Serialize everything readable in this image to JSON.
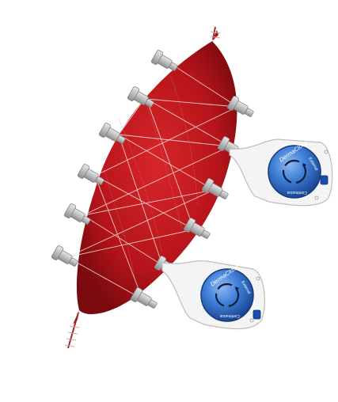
{
  "devices": [
    {
      "brand": "DermaClose",
      "side_text": "External",
      "bottom_text": "Continuous"
    },
    {
      "brand": "DermaClose",
      "side_text": "External",
      "bottom_text": "Continuous"
    }
  ],
  "colors": {
    "wound": "#c0161b",
    "wound_dark": "#8e0c10",
    "dial_blue": "#2e6fc9",
    "dial_dark": "#1d4b9a",
    "anchor_gray": "#b9b9b9",
    "button_blue": "#1a4fb0"
  }
}
